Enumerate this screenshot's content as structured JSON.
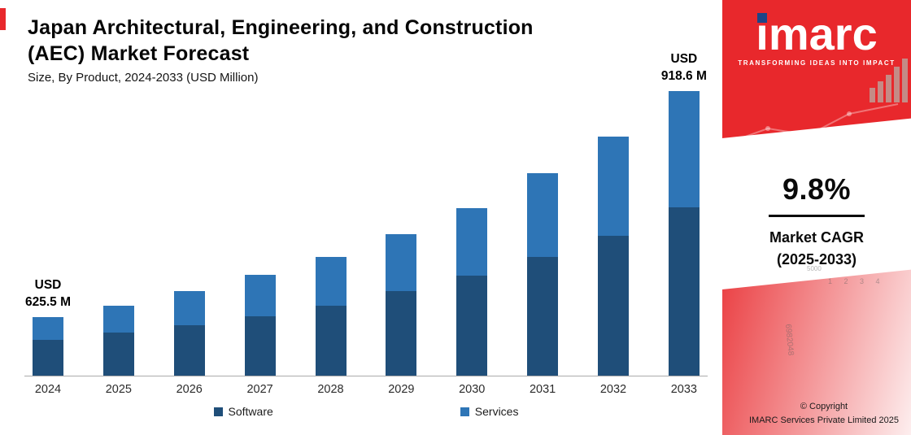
{
  "header": {
    "title_line1": "Japan Architectural, Engineering, and Construction",
    "title_line2": "(AEC) Market Forecast",
    "subtitle": "Size, By Product, 2024-2033 (USD Million)"
  },
  "chart_data": {
    "type": "bar",
    "stacked": true,
    "title": "Japan Architectural, Engineering, and Construction (AEC) Market Forecast",
    "subtitle": "Size, By Product, 2024-2033 (USD Million)",
    "categories": [
      "2024",
      "2025",
      "2026",
      "2027",
      "2028",
      "2029",
      "2030",
      "2031",
      "2032",
      "2033"
    ],
    "series": [
      {
        "name": "Software",
        "color": "#1F4E79",
        "values": [
          44,
          53,
          62,
          73,
          86,
          104,
          123,
          146,
          172,
          207
        ]
      },
      {
        "name": "Services",
        "color": "#2E75B6",
        "values": [
          28,
          33,
          42,
          51,
          60,
          70,
          83,
          103,
          122,
          143
        ]
      }
    ],
    "values_note": "Series values are relative bar heights read from the figure (no y-axis shown); only the 2024 and 2033 totals carry data labels.",
    "labeled_totals_usd_million": {
      "2024": 625.5,
      "2033": 918.6
    },
    "annotations": [
      {
        "category": "2024",
        "lines": [
          "USD",
          "625.5 M"
        ]
      },
      {
        "category": "2033",
        "lines": [
          "USD",
          "918.6 M"
        ]
      }
    ],
    "axis": {
      "y_axis_visible": false,
      "gridlines": false,
      "x_ticks_visible": true
    },
    "legend_position": "bottom"
  },
  "sidebar": {
    "accent_color": "#E8282C",
    "brand": "imarc",
    "tagline": "TRANSFORMING IDEAS INTO IMPACT",
    "stat_value": "9.8%",
    "stat_label_1": "Market CAGR",
    "stat_label_2": "(2025-2033)",
    "copyright_1": "© Copyright",
    "copyright_2": "IMARC Services Private Limited 2025",
    "watermarks": {
      "a": "5000",
      "b": "1 2 3 4",
      "c": "6982048"
    }
  }
}
